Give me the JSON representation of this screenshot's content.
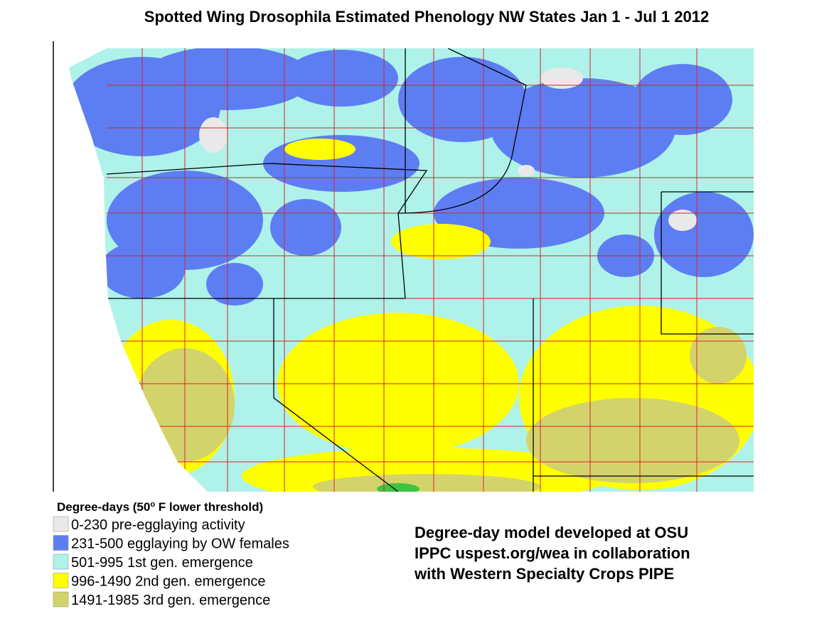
{
  "header": {
    "title": "Spotted Wing Drosophila Estimated Phenology NW States Jan 1 - Jul 1 2012"
  },
  "legend": {
    "title_parts": [
      "Degree-days (50",
      "o",
      " F lower threshold)"
    ],
    "items": [
      {
        "label": "0-230  pre-egglaying activity",
        "color": "#e9e9e9"
      },
      {
        "label": "231-500 egglaying by OW females",
        "color": "#5d7ef2"
      },
      {
        "label": "501-995  1st gen. emergence",
        "color": "#aef2ea"
      },
      {
        "label": "996-1490  2nd gen. emergence",
        "color": "#ffff00"
      },
      {
        "label": "1491-1985  3rd gen. emergence",
        "color": "#d3d36c"
      }
    ]
  },
  "credits": [
    "Degree-day model developed at OSU",
    "IPPC uspest.org/wea in collaboration",
    "with Western Specialty Crops PIPE"
  ]
}
